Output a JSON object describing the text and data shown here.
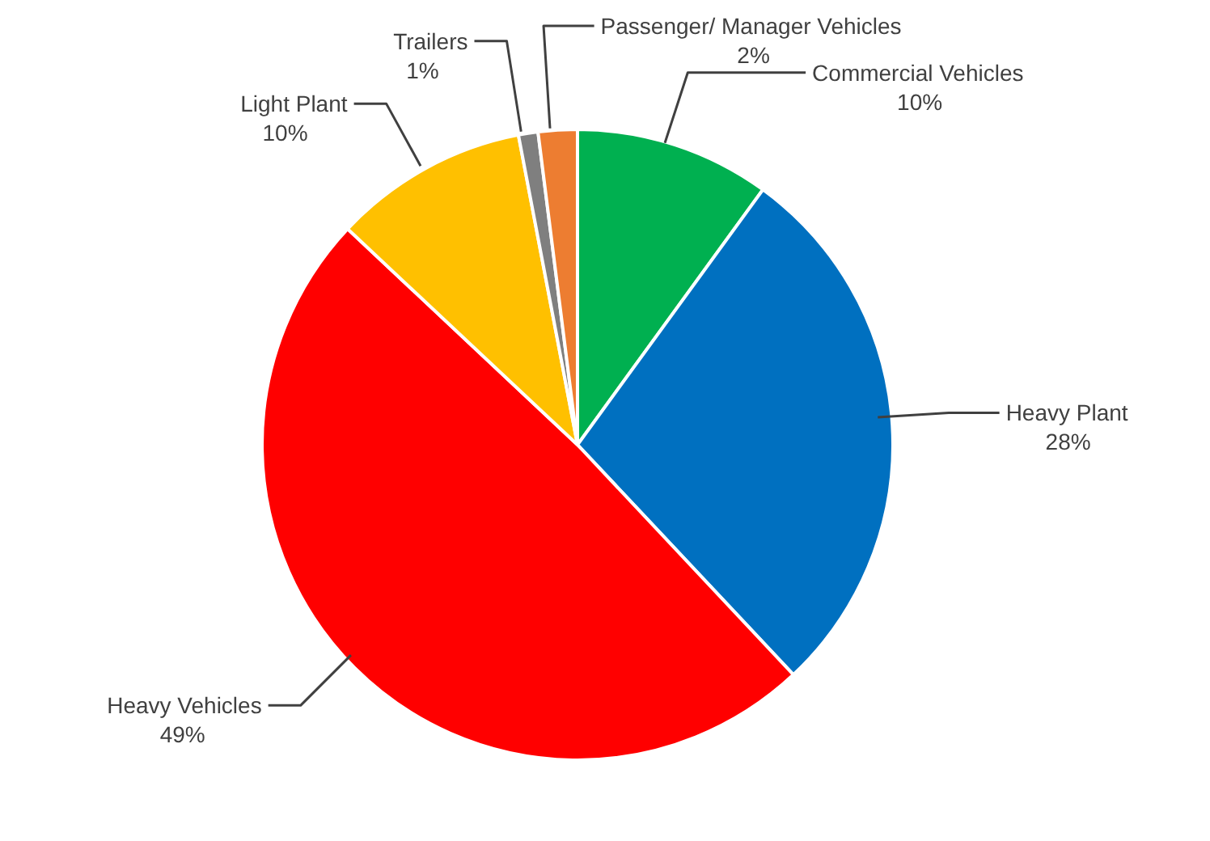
{
  "chart_data": {
    "type": "pie",
    "categories": [
      "Commercial Vehicles",
      "Heavy Plant",
      "Heavy Vehicles",
      "Light Plant",
      "Trailers",
      "Passenger/ Manager Vehicles"
    ],
    "values": [
      10,
      28,
      49,
      10,
      1,
      2
    ],
    "value_labels": [
      "10%",
      "28%",
      "49%",
      "10%",
      "1%",
      "2%"
    ],
    "colors": [
      "#00b050",
      "#0070c0",
      "#ff0000",
      "#ffc000",
      "#7f7f7f",
      "#ed7d31"
    ]
  }
}
